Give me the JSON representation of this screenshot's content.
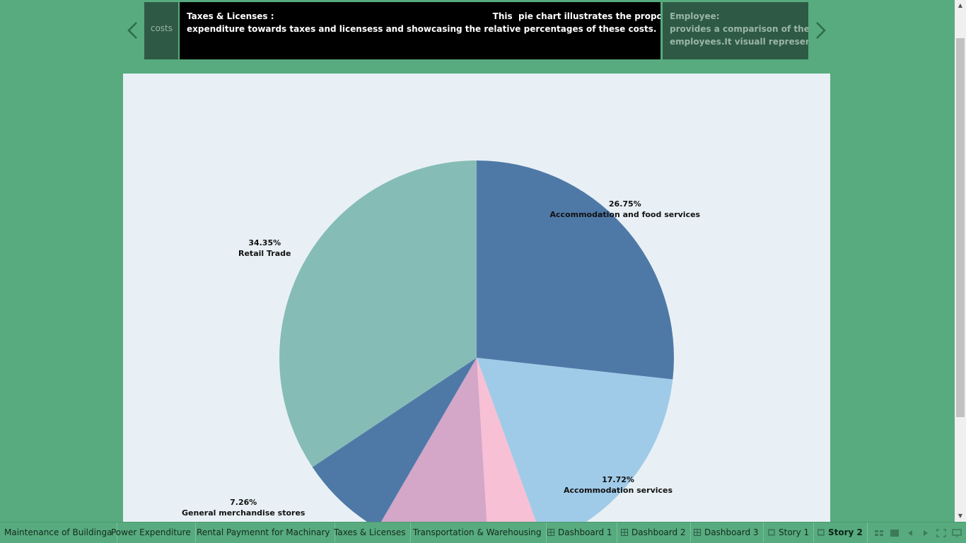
{
  "story": {
    "prev_point_text": "costs",
    "active_point": {
      "line1": "Taxes & Licenses :                                                                          This  pie chart illustrates the proportion of",
      "line2": "expenditure towards taxes and licensess and showcasing the relative percentages of these costs."
    },
    "next_point": {
      "line1": "Employee:",
      "line2": "provides a comparison of the expe",
      "line3": "employees.It visuall represents the"
    }
  },
  "chart_data": {
    "type": "pie",
    "slices": [
      {
        "label": "Accommodation and food services",
        "percent_label": "26.75%",
        "value": 26.75,
        "color": "#4e79a7"
      },
      {
        "label": "Accommodation services",
        "percent_label": "17.72%",
        "value": 17.72,
        "color": "#a0cbe8"
      },
      {
        "label": "",
        "percent_label": "",
        "value": 4.55,
        "color": "#f8c0d4"
      },
      {
        "label": "",
        "percent_label": "",
        "value": 9.37,
        "color": "#d4a6c8"
      },
      {
        "label": "General merchandise stores",
        "percent_label": "7.26%",
        "value": 7.26,
        "color": "#4e79a7"
      },
      {
        "label": "Retail Trade",
        "percent_label": "34.35%",
        "value": 34.35,
        "color": "#86bcb6"
      }
    ]
  },
  "tabs": [
    {
      "label": "Maintenance of Buildinga",
      "icon": "none",
      "active": false
    },
    {
      "label": "Power Expenditure",
      "icon": "none",
      "active": false
    },
    {
      "label": "Rental Paymennt for Machinary",
      "icon": "none",
      "active": false
    },
    {
      "label": "Taxes & Licenses",
      "icon": "none",
      "active": false
    },
    {
      "label": "Transportation & Warehousing",
      "icon": "none",
      "active": false
    },
    {
      "label": "Dashboard 1",
      "icon": "dashboard-icon",
      "active": false
    },
    {
      "label": "Dashboard 2",
      "icon": "dashboard-icon",
      "active": false
    },
    {
      "label": "Dashboard 3",
      "icon": "dashboard-icon",
      "active": false
    },
    {
      "label": "Story 1",
      "icon": "story-icon",
      "active": false
    },
    {
      "label": "Story 2",
      "icon": "story-icon",
      "active": true
    }
  ],
  "colors": {
    "background": "#57ab7e",
    "story_active_bg": "#000000",
    "story_inactive_bg": "#2e5a45",
    "chart_bg": "#e8f0f5"
  }
}
